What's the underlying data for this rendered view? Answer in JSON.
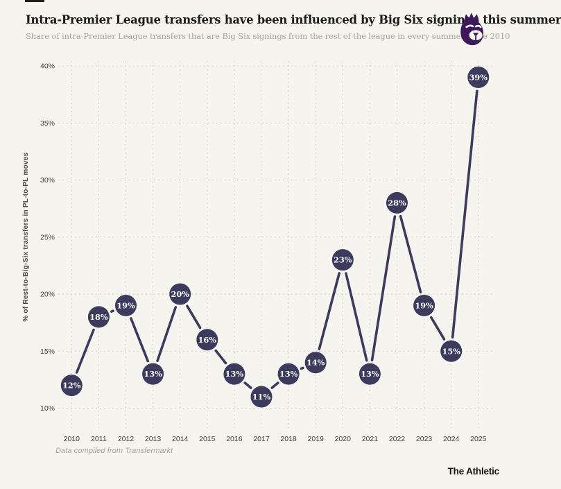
{
  "header": {
    "title": "Intra-Premier League transfers have been influenced by Big Six signings this summer",
    "subtitle": "Share of intra-Premier League transfers that are Big Six signings from the rest of the league in every summer since 2010",
    "logo_alt": "Premier League lion"
  },
  "colors": {
    "background": "#f5f4ef",
    "accent_navy": "#3c3a5d",
    "pl_purple": "#3d195b",
    "grid": "#c9c7bc",
    "tick_text": "#3e3e3b",
    "axis_title_text": "#474745",
    "point_label_text": "#ffffff",
    "muted_text": "#a5a29a",
    "title_text": "#1b1b19"
  },
  "chart_data": {
    "type": "line",
    "title": "Intra-Premier League transfers have been influenced by Big Six signings this summer",
    "categories": [
      "2010",
      "2011",
      "2012",
      "2013",
      "2014",
      "2015",
      "2016",
      "2017",
      "2018",
      "2019",
      "2020",
      "2021",
      "2022",
      "2023",
      "2024",
      "2025"
    ],
    "values": [
      12,
      18,
      19,
      13,
      20,
      16,
      13,
      11,
      13,
      14,
      23,
      13,
      28,
      19,
      15,
      39
    ],
    "point_labels": [
      "12%",
      "18%",
      "19%",
      "13%",
      "20%",
      "16%",
      "13%",
      "11%",
      "13%",
      "14%",
      "23%",
      "13%",
      "28%",
      "19%",
      "15%",
      "39%"
    ],
    "xlabel": "",
    "ylabel": "% of Rest-to-Big-Six transfers in PL-to-PL moves",
    "yticks": [
      10,
      15,
      20,
      25,
      30,
      35,
      40
    ],
    "ytick_labels": [
      "10%",
      "15%",
      "20%",
      "25%",
      "30%",
      "35%",
      "40%"
    ],
    "ylim": [
      8.5,
      41
    ],
    "grid": "dotted-both-axes",
    "legend": "none",
    "marker": "filled-circle-with-value-label"
  },
  "footer": {
    "source": "Data compiled from Transfermarkt",
    "brand": "The Athletic"
  }
}
